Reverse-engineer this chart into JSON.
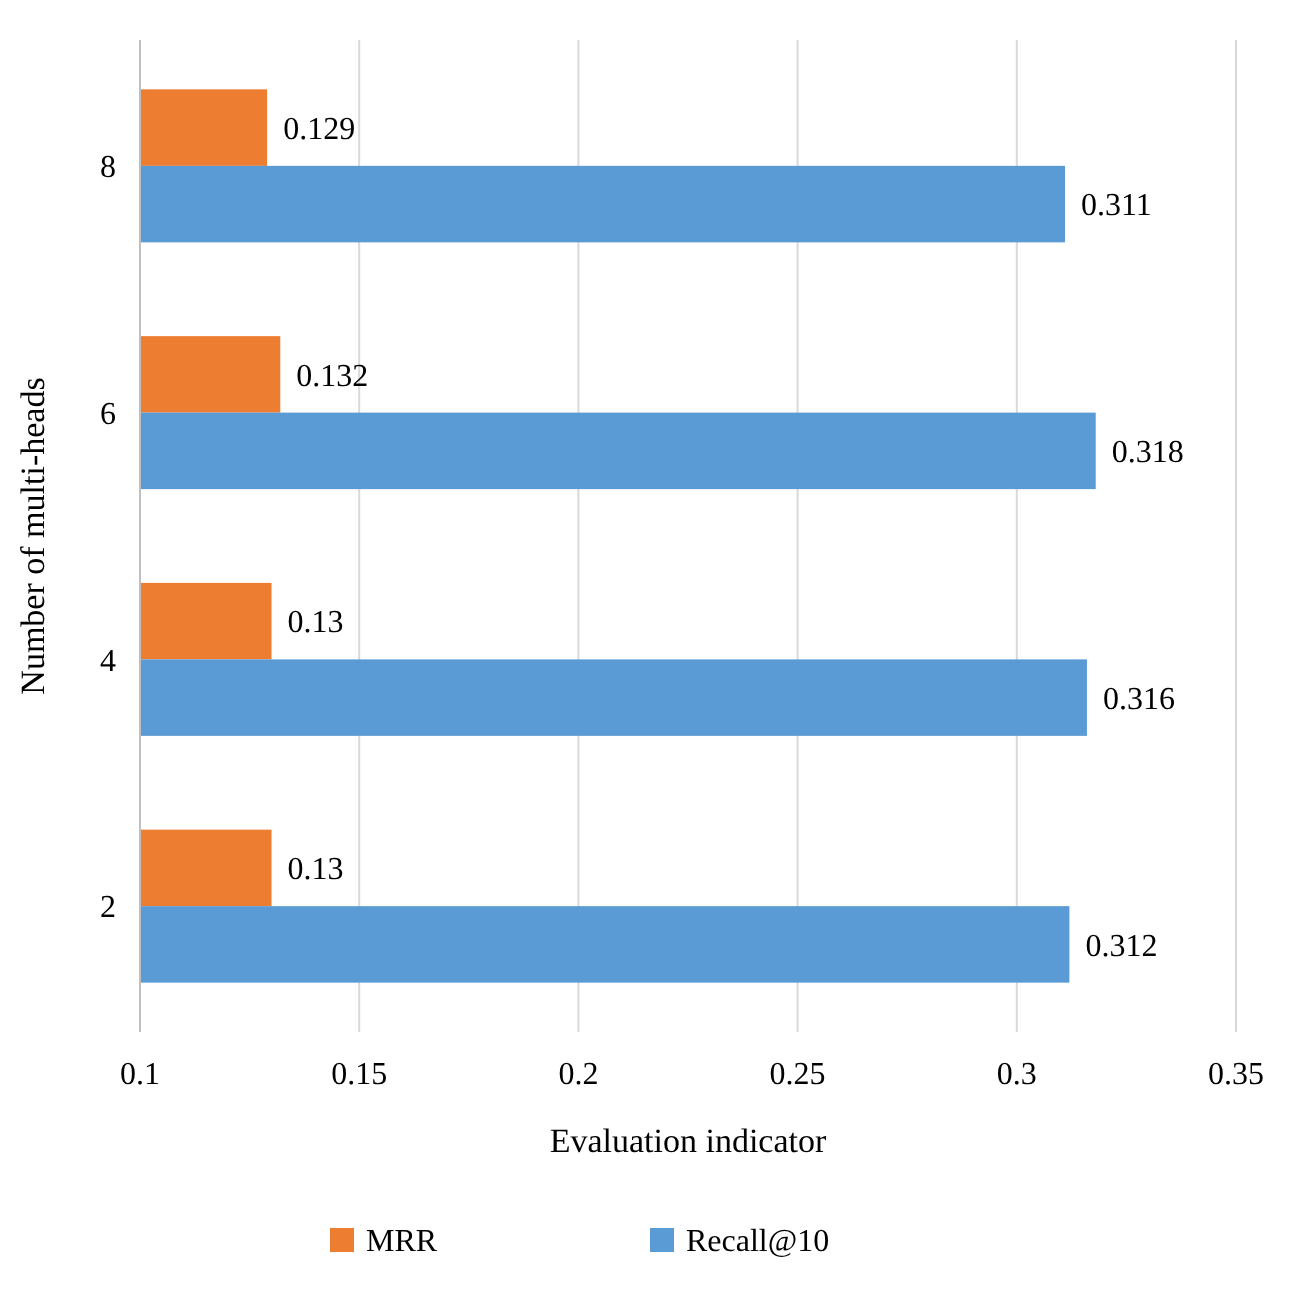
{
  "chart_data": {
    "type": "bar",
    "orientation": "horizontal",
    "xlabel": "Evaluation indicator",
    "ylabel": "Number of multi-heads",
    "categories": [
      "8",
      "6",
      "4",
      "2"
    ],
    "series": [
      {
        "name": "MRR",
        "color": "#ed7d31",
        "values": [
          0.129,
          0.132,
          0.13,
          0.13
        ]
      },
      {
        "name": "Recall@10",
        "color": "#5b9bd5",
        "values": [
          0.311,
          0.318,
          0.316,
          0.312
        ]
      }
    ],
    "xlim": [
      0.1,
      0.35
    ],
    "xticks": [
      0.1,
      0.15,
      0.2,
      0.25,
      0.3,
      0.35
    ],
    "grid": "x",
    "data_labels": true,
    "legend": "bottom"
  }
}
